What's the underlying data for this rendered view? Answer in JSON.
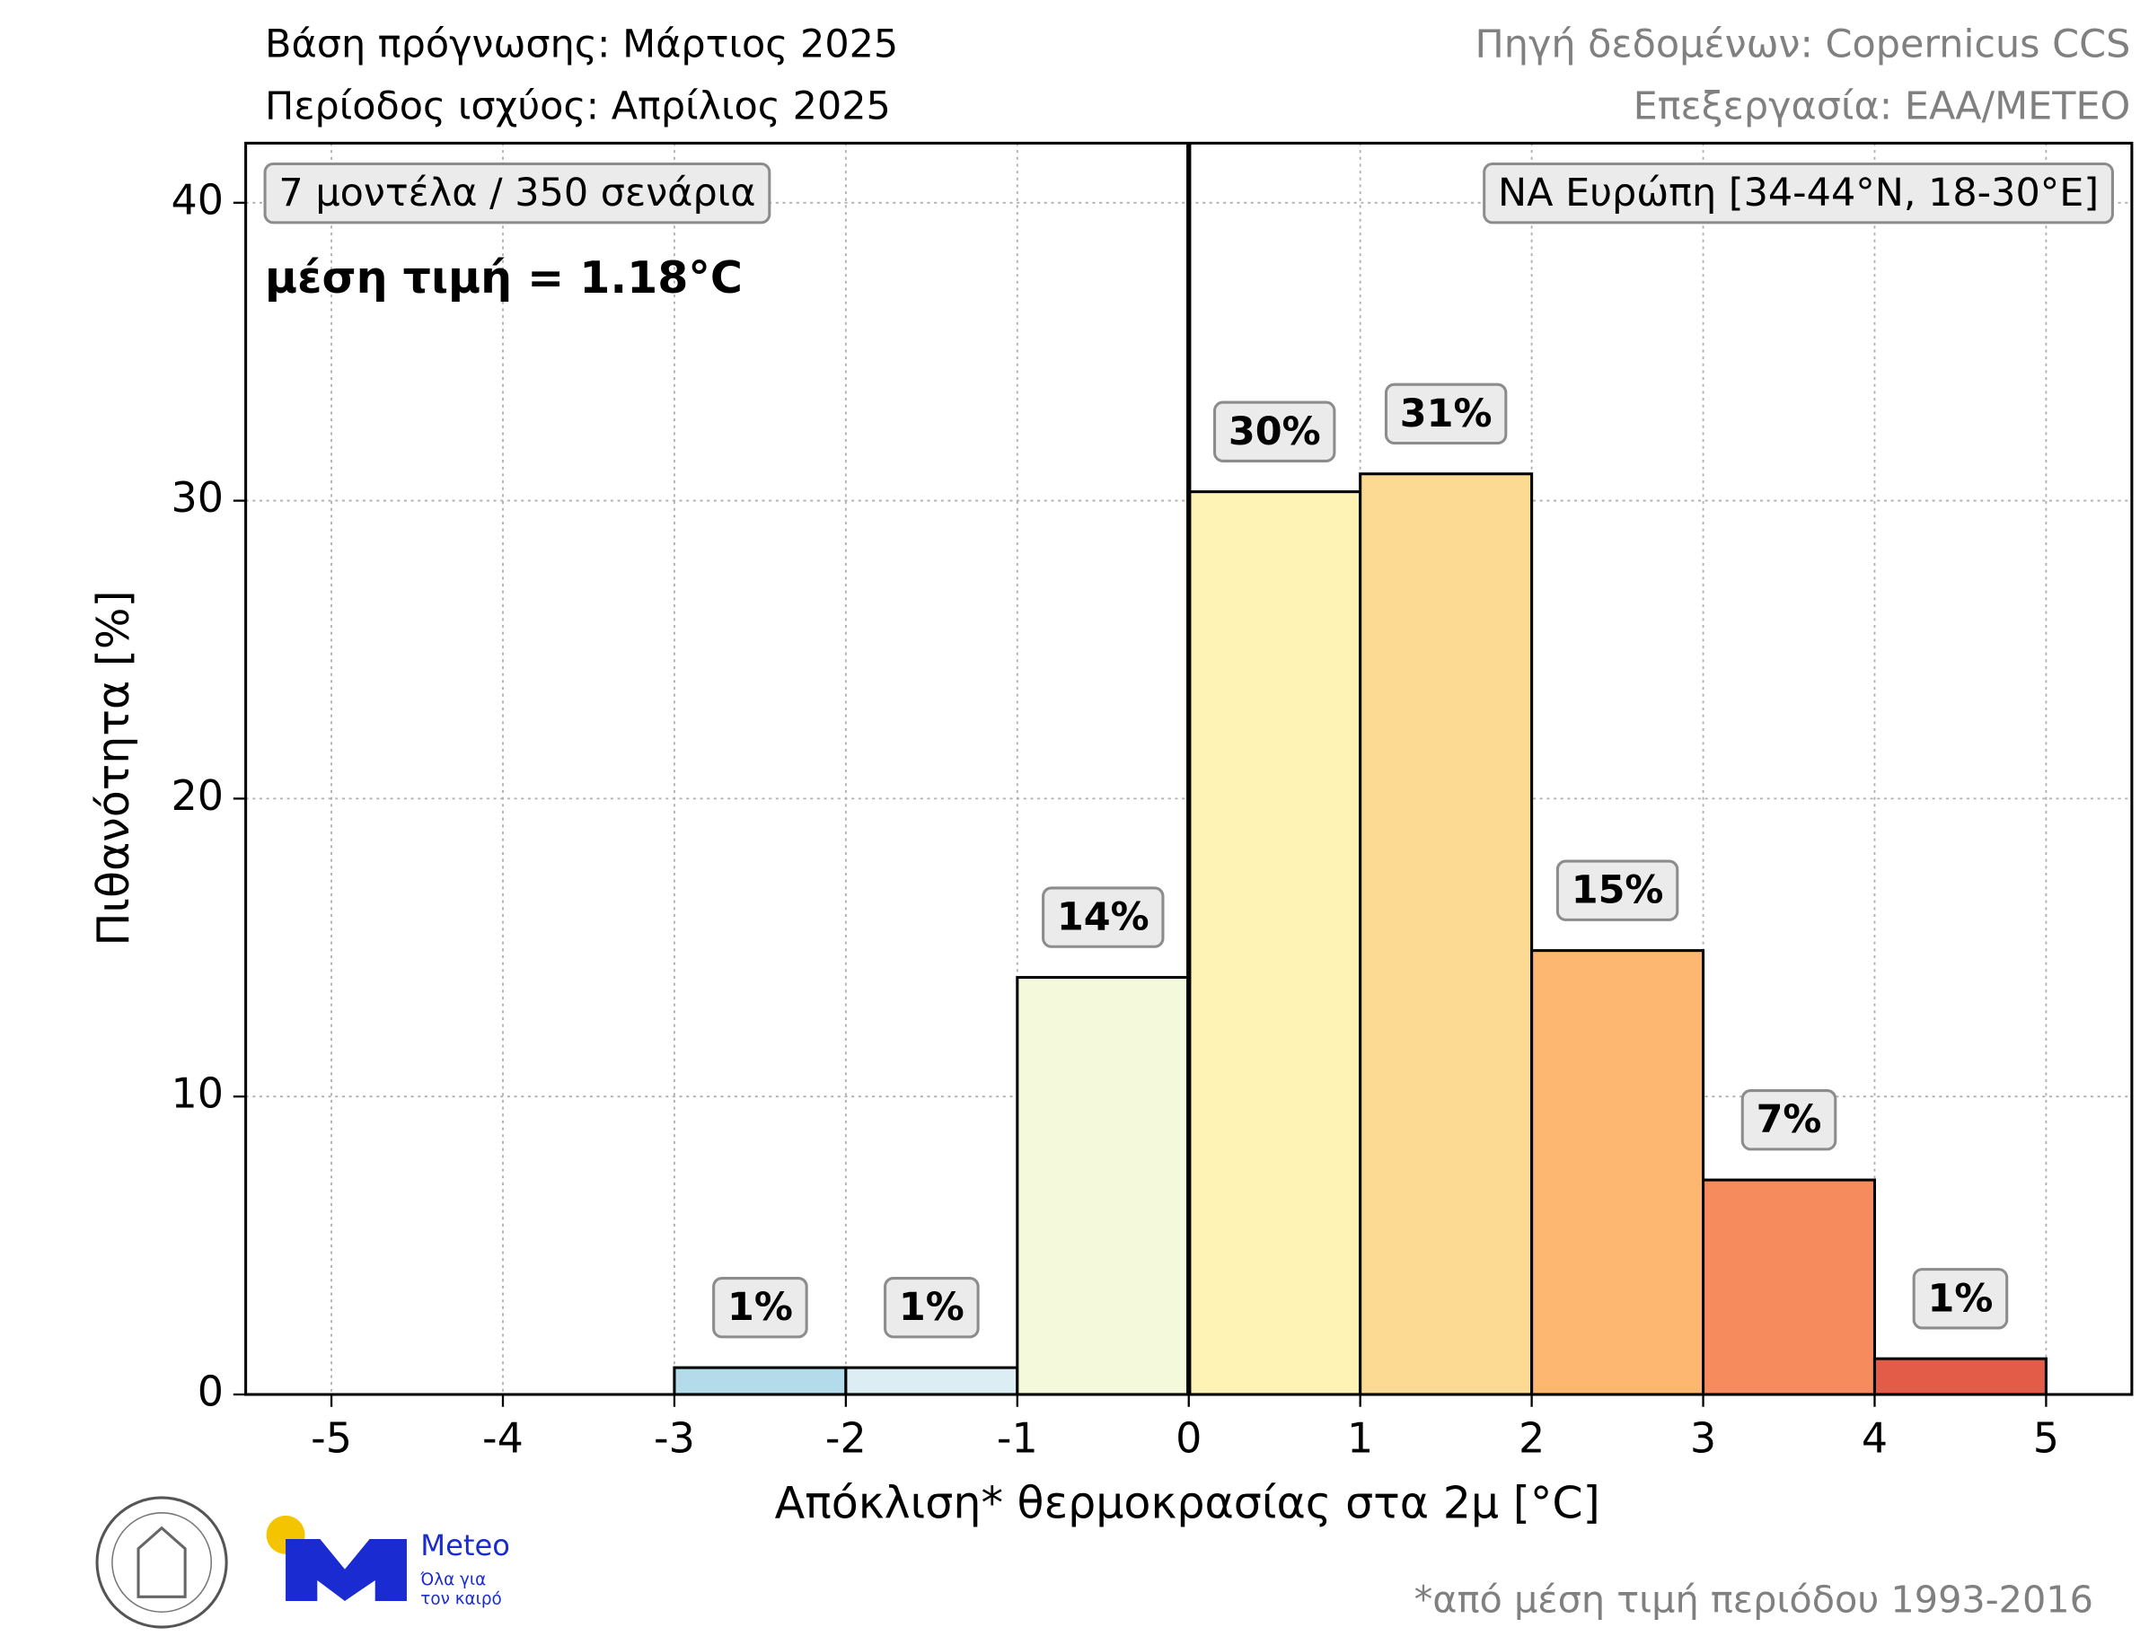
{
  "chart_data": {
    "type": "histogram",
    "header": {
      "forecast_base": "Βάση πρόγνωσης: Μάρτιος 2025",
      "valid_period": "Περίοδος ισχύος: Απρίλιος 2025",
      "source": "Πηγή δεδομένων: Copernicus CCS",
      "processing": "Επεξεργασία: ΕΑΑ/METEO"
    },
    "models_box": "7 μοντέλα / 350 σενάρια",
    "region_box": "ΝΑ Ευρώπη [34-44°N, 18-30°E]",
    "mean_text": "μέση τιμή = 1.18°C",
    "xlabel": "Απόκλιση* θερμοκρασίας στα 2μ [°C]",
    "ylabel": "Πιθανότητα [%]",
    "footnote": "*από μέση τιμή περιόδου 1993-2016",
    "bins": [
      -5,
      -4,
      -3,
      -2,
      -1,
      0,
      1,
      2,
      3,
      4,
      5
    ],
    "values": [
      0,
      0,
      0.9,
      0.9,
      14,
      30.3,
      30.9,
      14.9,
      7.2,
      1.2
    ],
    "value_labels": [
      null,
      null,
      "1%",
      "1%",
      "14%",
      "30%",
      "31%",
      "15%",
      "7%",
      "1%"
    ],
    "colors": [
      null,
      null,
      "#b3dbea",
      "#dcedf4",
      "#f3f9da",
      "#fef3b5",
      "#fdda94",
      "#fdb771",
      "#f68c5e",
      "#e35c47"
    ],
    "xlim": [
      -5.5,
      5.5
    ],
    "ylim": [
      0,
      42
    ],
    "xticks": [
      -5,
      -4,
      -3,
      -2,
      -1,
      0,
      1,
      2,
      3,
      4,
      5
    ],
    "yticks": [
      0,
      10,
      20,
      30,
      40
    ],
    "vline": 0,
    "grid": true
  },
  "branding": {
    "name": "Meteo",
    "slogan_1": "Όλα για",
    "slogan_2": "τον καιρό"
  }
}
